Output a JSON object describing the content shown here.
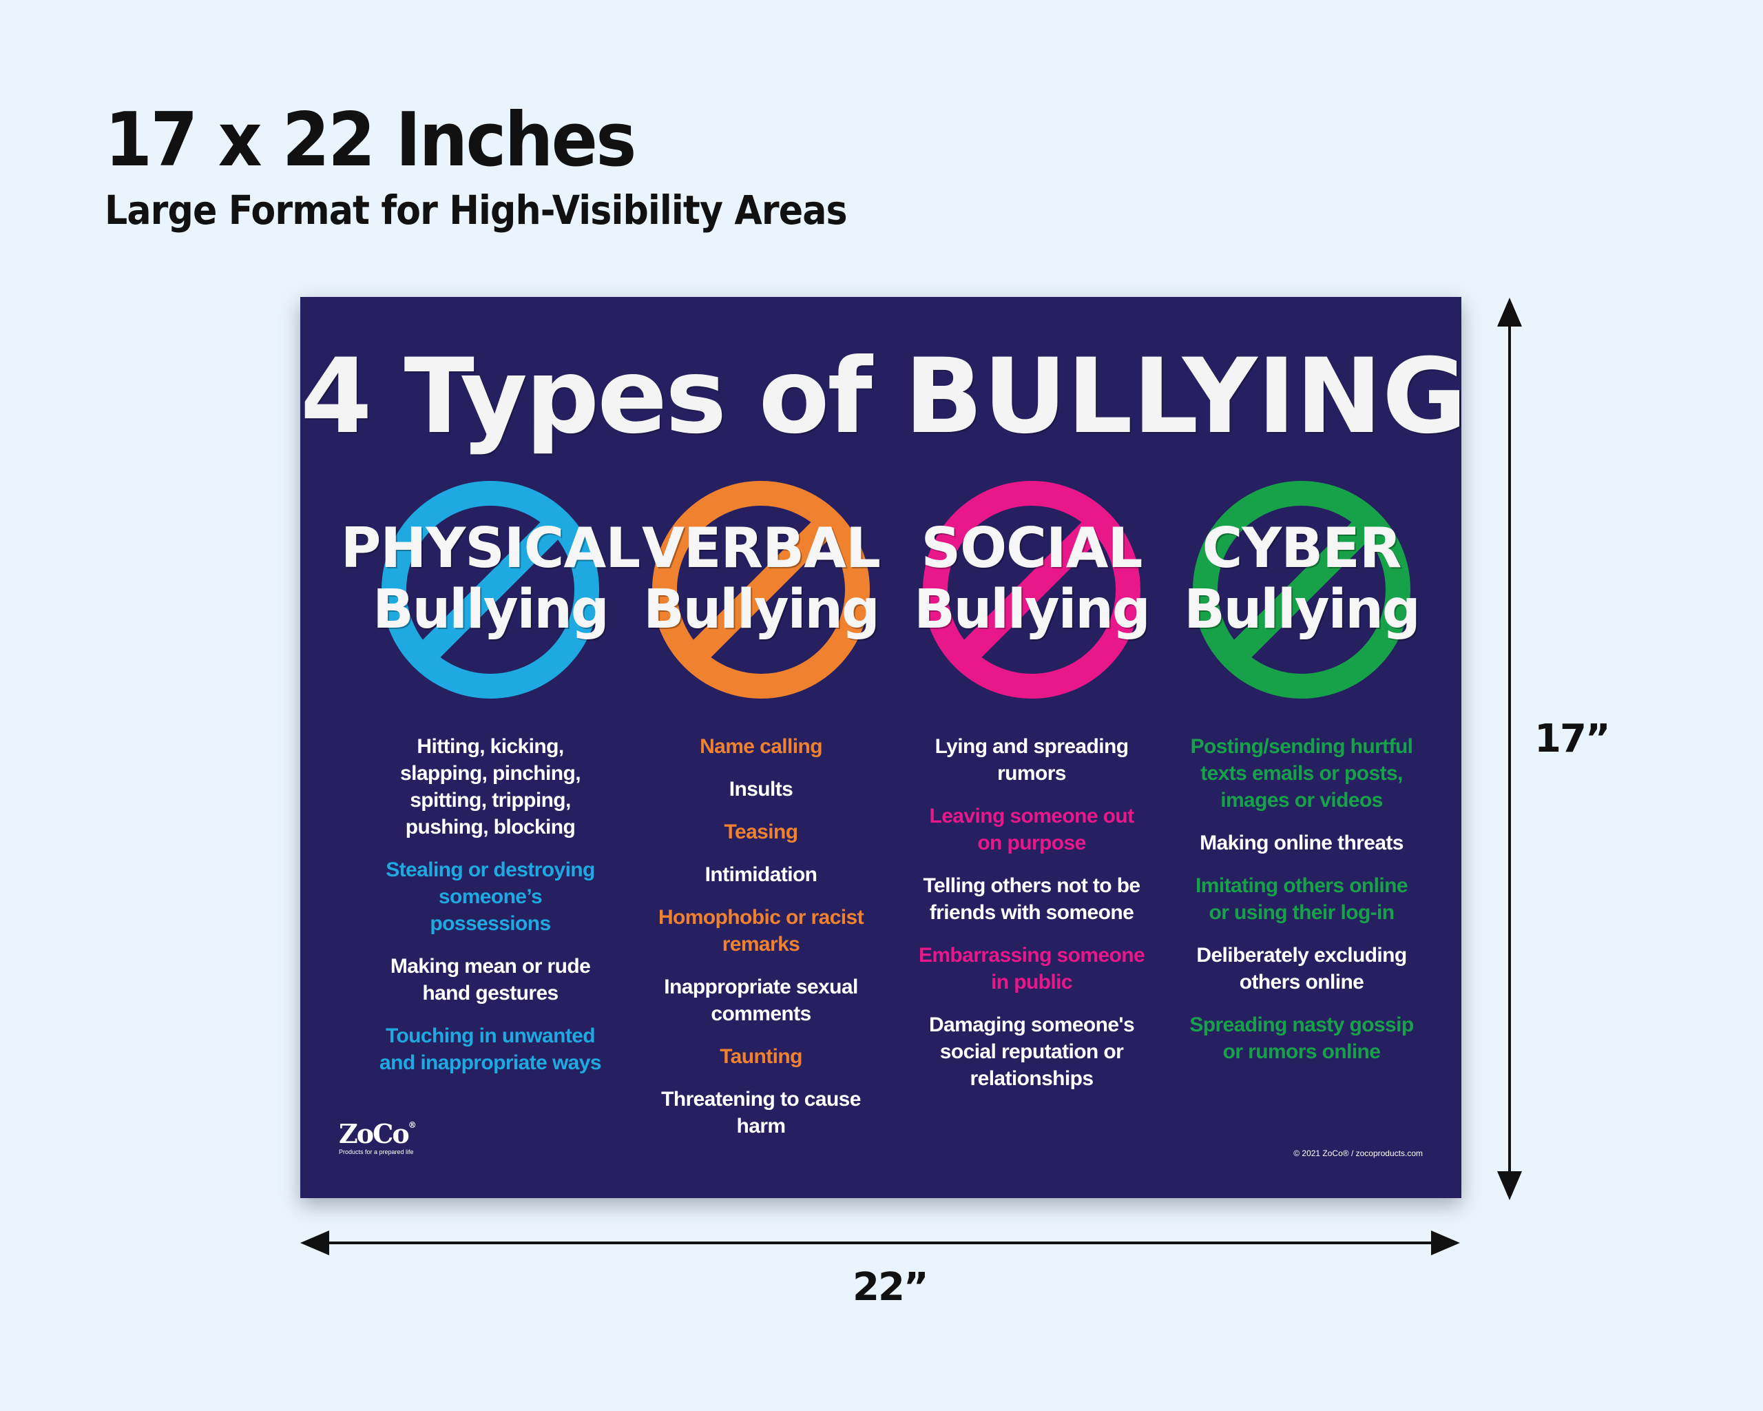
{
  "heading": {
    "title": "17 x 22 Inches",
    "subtitle": "Large Format for High-Visibility Areas"
  },
  "poster": {
    "title_part1": "4 Types of",
    "title_part2": "BULLYING",
    "columns": [
      {
        "type": "PHYSICAL",
        "sub": "Bullying",
        "color": "#1ea9e1",
        "items": [
          {
            "text": "Hitting, kicking, slapping, pinching, spitting, tripping, pushing, blocking",
            "highlight": false
          },
          {
            "text": "Stealing or destroying someone’s possessions",
            "highlight": true
          },
          {
            "text": "Making mean or rude hand gestures",
            "highlight": false
          },
          {
            "text": "Touching in unwanted and inappropriate ways",
            "highlight": true
          }
        ]
      },
      {
        "type": "VERBAL",
        "sub": "Bullying",
        "color": "#f0812f",
        "items": [
          {
            "text": "Name calling",
            "highlight": true
          },
          {
            "text": "Insults",
            "highlight": false
          },
          {
            "text": "Teasing",
            "highlight": true
          },
          {
            "text": "Intimidation",
            "highlight": false
          },
          {
            "text": "Homophobic or racist  remarks",
            "highlight": true
          },
          {
            "text": "Inappropriate sexual comments",
            "highlight": false
          },
          {
            "text": "Taunting",
            "highlight": true
          },
          {
            "text": "Threatening to cause harm",
            "highlight": false
          }
        ]
      },
      {
        "type": "SOCIAL",
        "sub": "Bullying",
        "color": "#e8178a",
        "items": [
          {
            "text": "Lying and spreading rumors",
            "highlight": false
          },
          {
            "text": "Leaving someone out on purpose",
            "highlight": true
          },
          {
            "text": "Telling others not to be friends with someone",
            "highlight": false
          },
          {
            "text": "Embarrassing someone in public",
            "highlight": true
          },
          {
            "text": "Damaging someone's social reputation or relationships",
            "highlight": false
          }
        ]
      },
      {
        "type": "CYBER",
        "sub": "Bullying",
        "color": "#17a24a",
        "items": [
          {
            "text": "Posting/sending hurtful texts emails or posts, images or videos",
            "highlight": true
          },
          {
            "text": "Making online threats",
            "highlight": false
          },
          {
            "text": "Imitating others online or using their log-in",
            "highlight": true
          },
          {
            "text": "Deliberately excluding others online",
            "highlight": false
          },
          {
            "text": "Spreading nasty gossip or rumors online",
            "highlight": true
          }
        ]
      }
    ],
    "logo": {
      "word": "ZoCo",
      "reg": "®",
      "tagline": "Products for a prepared life"
    },
    "copyright": "© 2021 ZoCo® / zocoproducts.com",
    "background_color": "#272060"
  },
  "dimensions": {
    "height_label": "17”",
    "width_label": "22”"
  }
}
